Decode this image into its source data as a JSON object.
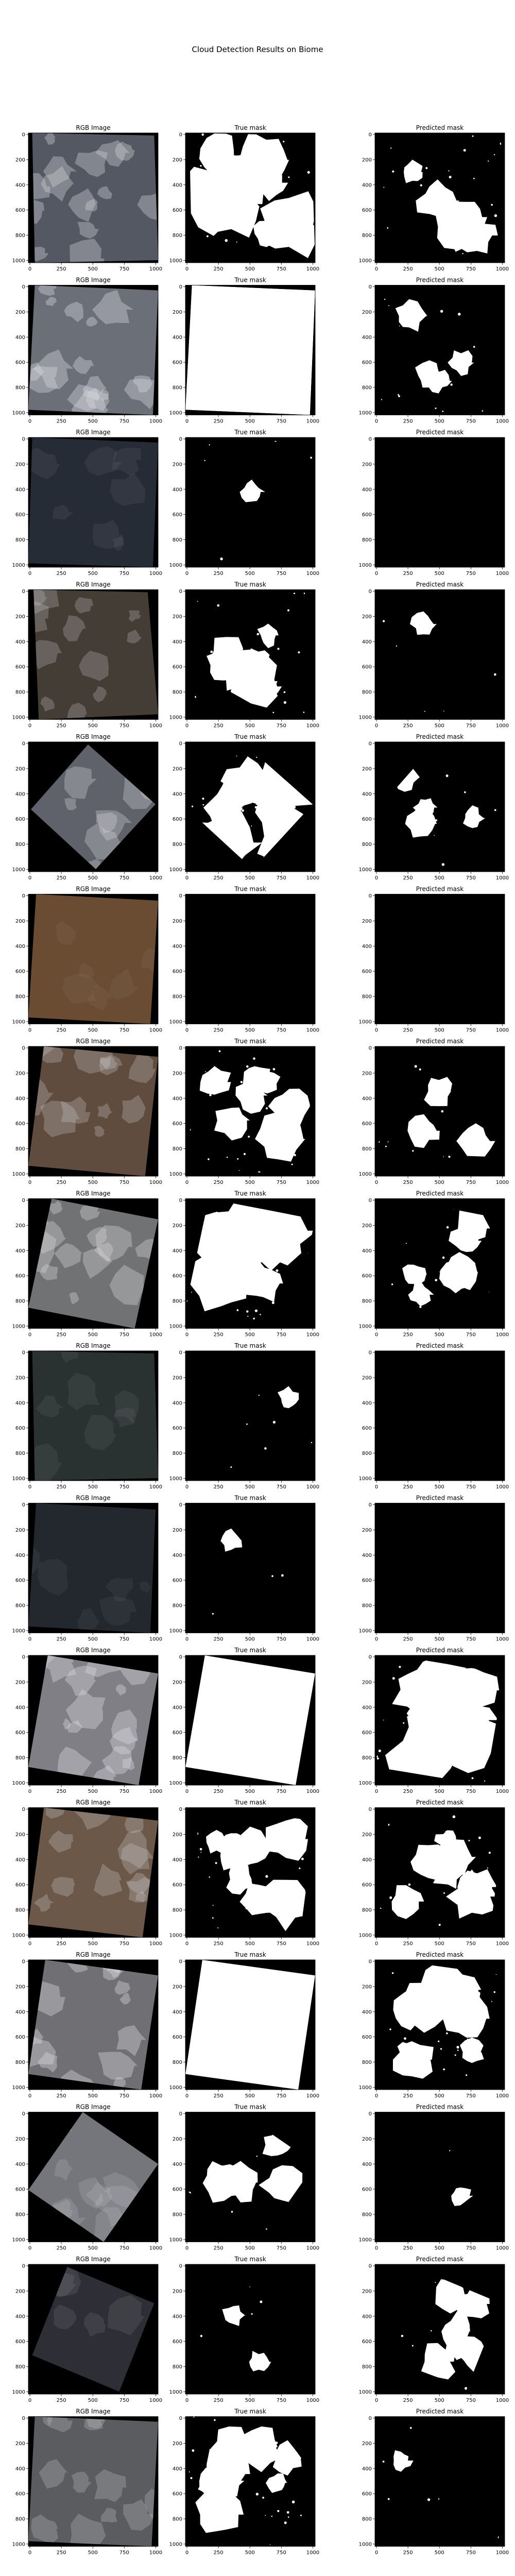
{
  "figure": {
    "title": "Cloud Detection Results on Biome"
  },
  "axes": {
    "y_ticks": [
      "0",
      "200",
      "400",
      "600",
      "800",
      "1000"
    ],
    "x_ticks": [
      "0",
      "250",
      "500",
      "750",
      "1000"
    ]
  },
  "columns": [
    {
      "title": "RGB Image"
    },
    {
      "title": "True mask"
    },
    {
      "title": "Predicted mask"
    }
  ],
  "colors": {
    "background": "#000000",
    "mask": "#ffffff",
    "axis": "#000000"
  },
  "rows": [
    {
      "scene": "gray-smooth",
      "tone": "#545863",
      "true_cloud_fraction": 0.88,
      "pred_cloud_fraction": 0.45
    },
    {
      "scene": "gray-streaks",
      "tone": "#6a6f78",
      "true_cloud_fraction": 1.0,
      "pred_cloud_fraction": 0.28
    },
    {
      "scene": "dark-blue",
      "tone": "#262c36",
      "true_cloud_fraction": 0.05,
      "pred_cloud_fraction": 0.0
    },
    {
      "scene": "brown-dark",
      "tone": "#443d36",
      "true_cloud_fraction": 0.55,
      "pred_cloud_fraction": 0.05
    },
    {
      "scene": "gray-diamond",
      "tone": "#5f626b",
      "true_cloud_fraction": 0.8,
      "pred_cloud_fraction": 0.25
    },
    {
      "scene": "brown",
      "tone": "#6a4c33",
      "true_cloud_fraction": 0.0,
      "pred_cloud_fraction": 0.0
    },
    {
      "scene": "brown-white",
      "tone": "#5f4c3e",
      "true_cloud_fraction": 0.6,
      "pred_cloud_fraction": 0.2
    },
    {
      "scene": "gray-white",
      "tone": "#717274",
      "true_cloud_fraction": 0.9,
      "pred_cloud_fraction": 0.4
    },
    {
      "scene": "dark-green",
      "tone": "#2a3231",
      "true_cloud_fraction": 0.05,
      "pred_cloud_fraction": 0.0
    },
    {
      "scene": "very-dark",
      "tone": "#23272e",
      "true_cloud_fraction": 0.02,
      "pred_cloud_fraction": 0.0
    },
    {
      "scene": "gray-light",
      "tone": "#807f85",
      "true_cloud_fraction": 1.0,
      "pred_cloud_fraction": 0.85
    },
    {
      "scene": "brown-cloud",
      "tone": "#6c5848",
      "true_cloud_fraction": 0.6,
      "pred_cloud_fraction": 0.5
    },
    {
      "scene": "gray-medium",
      "tone": "#707074",
      "true_cloud_fraction": 1.0,
      "pred_cloud_fraction": 0.65
    },
    {
      "scene": "gray-diamond-light",
      "tone": "#75767b",
      "true_cloud_fraction": 0.35,
      "pred_cloud_fraction": 0.03
    },
    {
      "scene": "dark-gray",
      "tone": "#2e2f36",
      "true_cloud_fraction": 0.15,
      "pred_cloud_fraction": 0.4
    },
    {
      "scene": "textured-gray",
      "tone": "#5a5c60",
      "true_cloud_fraction": 0.55,
      "pred_cloud_fraction": 0.05
    }
  ]
}
